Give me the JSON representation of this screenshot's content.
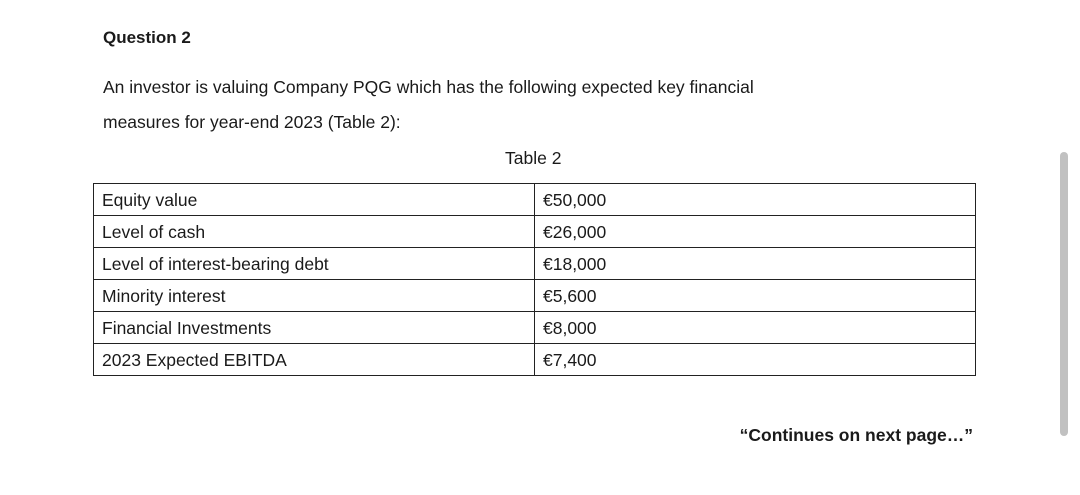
{
  "question": {
    "heading": "Question 2",
    "intro_line1": "An investor is valuing Company PQG which has the following expected key financial",
    "intro_line2": "measures for year-end 2023 (Table 2):"
  },
  "table": {
    "caption": "Table 2",
    "rows": [
      {
        "label": "Equity value",
        "value": "€50,000"
      },
      {
        "label": "Level of cash",
        "value": "€26,000"
      },
      {
        "label": "Level of interest-bearing debt",
        "value": "€18,000"
      },
      {
        "label": "Minority interest",
        "value": "€5,600"
      },
      {
        "label": "Financial Investments",
        "value": "€8,000"
      },
      {
        "label": "2023 Expected EBITDA",
        "value": "€7,400"
      }
    ]
  },
  "footer": {
    "continues": "“Continues on next page…”"
  }
}
